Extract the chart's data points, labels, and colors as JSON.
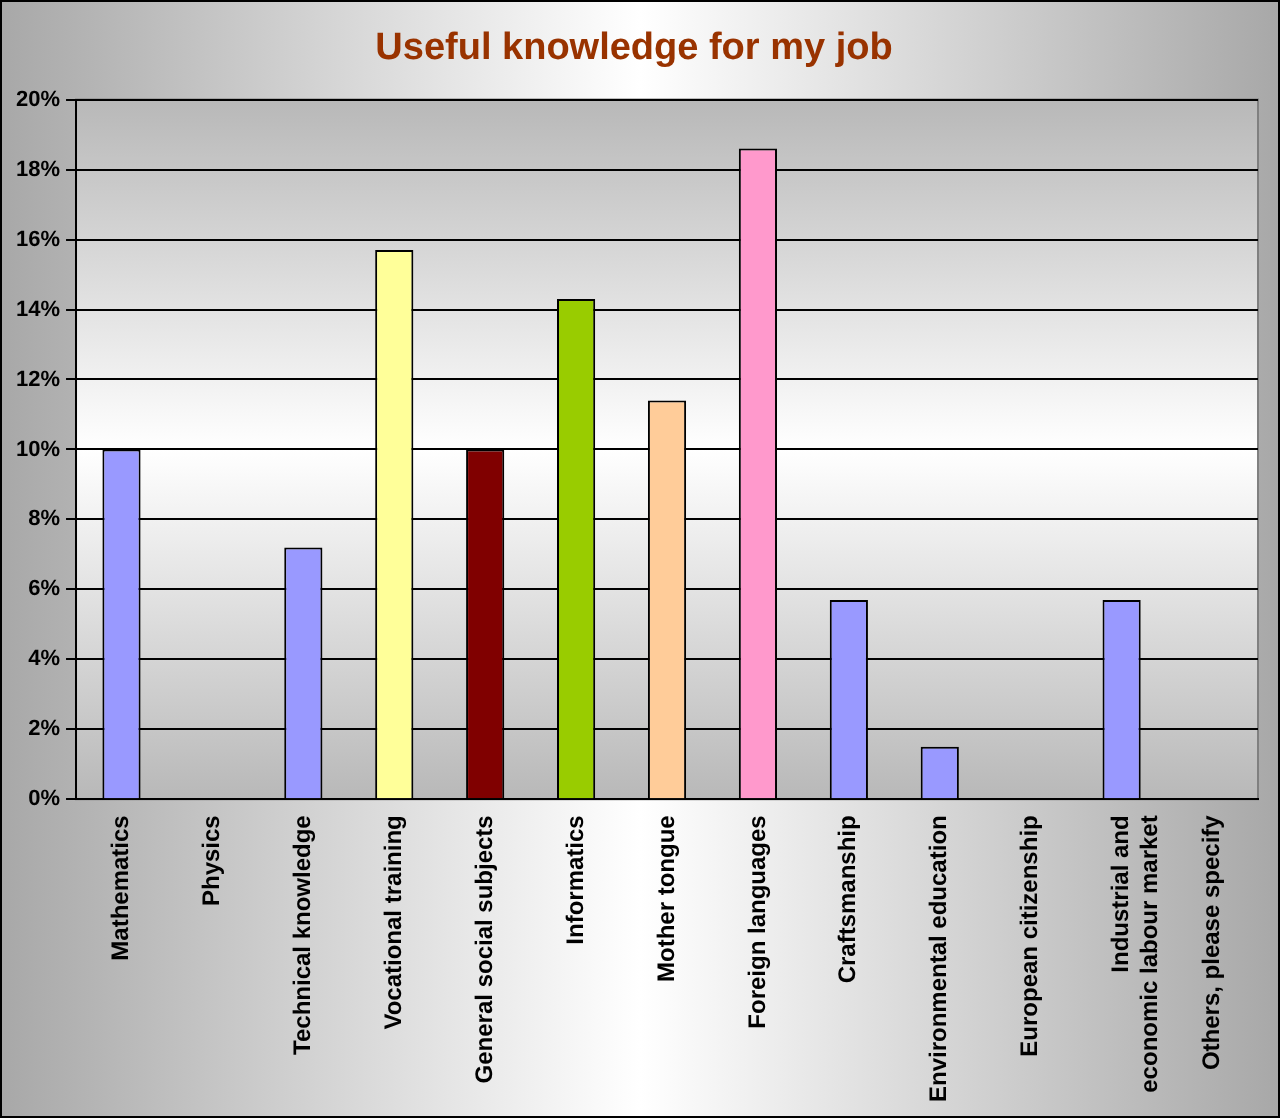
{
  "chart_data": {
    "type": "bar",
    "title": "Useful knowledge for my job",
    "categories": [
      "Mathematics",
      "Physics",
      "Technical knowledge",
      "Vocational training",
      "General social subjects",
      "Informatics",
      "Mother tongue",
      "Foreign languages",
      "Craftsmanship",
      "Environmental education",
      "European citizenship",
      "Industrial and economic labour market",
      "Others, please specify"
    ],
    "values": [
      10,
      0,
      7.2,
      15.7,
      10,
      14.3,
      11.4,
      18.6,
      5.7,
      1.5,
      0,
      5.7,
      0
    ],
    "colors": [
      "#9999ff",
      "#9999ff",
      "#9999ff",
      "#ffff99",
      "#800000",
      "#99cc00",
      "#ffcc99",
      "#ff99cc",
      "#9999ff",
      "#9999ff",
      "#9999ff",
      "#9999ff",
      "#9999ff"
    ],
    "ylim": [
      0,
      20
    ],
    "yticks": [
      {
        "value": 0,
        "label": "0%"
      },
      {
        "value": 2,
        "label": "2%"
      },
      {
        "value": 4,
        "label": "4%"
      },
      {
        "value": 6,
        "label": "6%"
      },
      {
        "value": 8,
        "label": "8%"
      },
      {
        "value": 10,
        "label": "10%"
      },
      {
        "value": 12,
        "label": "12%"
      },
      {
        "value": 14,
        "label": "14%"
      },
      {
        "value": 16,
        "label": "16%"
      },
      {
        "value": 18,
        "label": "18%"
      },
      {
        "value": 20,
        "label": "20%"
      }
    ],
    "grid": "y",
    "legend": false
  }
}
